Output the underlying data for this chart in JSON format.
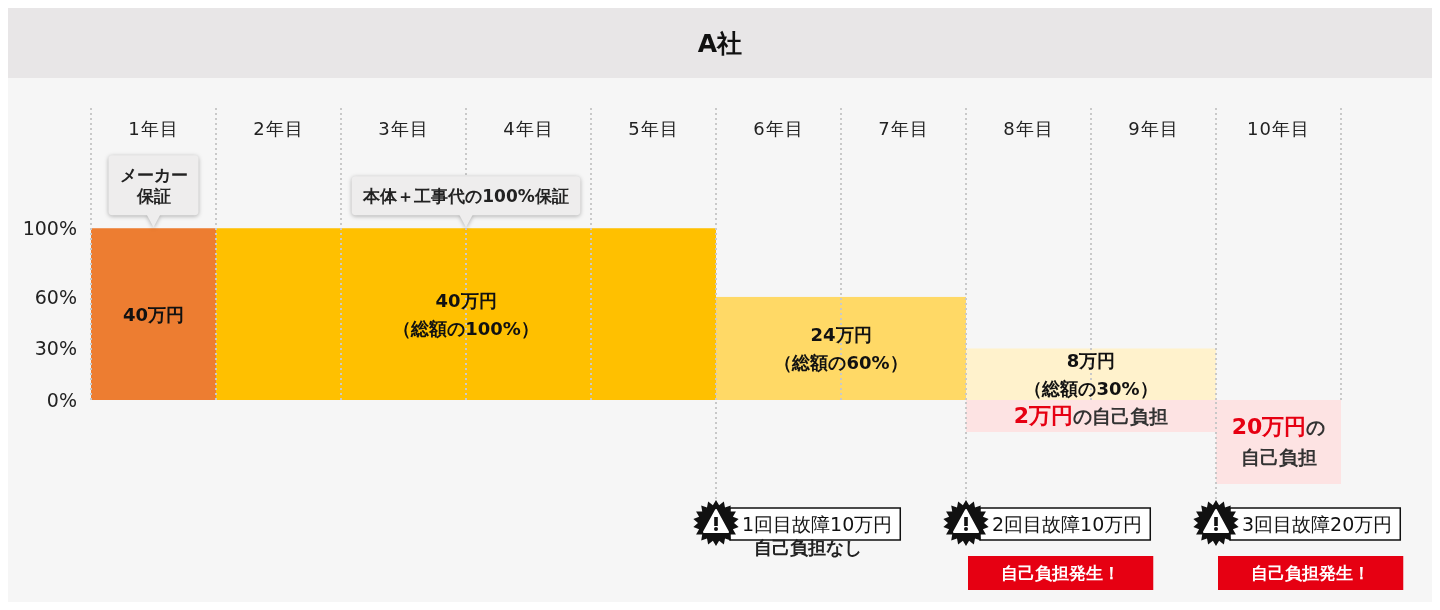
{
  "chart_data": {
    "type": "bar",
    "title": "A社",
    "categories": [
      "1年目",
      "2年目",
      "3年目",
      "4年目",
      "5年目",
      "6年目",
      "7年目",
      "8年目",
      "9年目",
      "10年目"
    ],
    "values": [
      100,
      100,
      100,
      100,
      100,
      60,
      60,
      30,
      30,
      0
    ],
    "colors": [
      "#ed7d31",
      "#ffc000",
      "#ffc000",
      "#ffc000",
      "#ffc000",
      "#ffd966",
      "#ffd966",
      "#fff2cc",
      "#fff2cc",
      "#fde3e3"
    ],
    "ylim": [
      0,
      170
    ],
    "yticks": [
      {
        "value": 0,
        "label": "0%"
      },
      {
        "value": 30,
        "label": "30%"
      },
      {
        "value": 60,
        "label": "60%"
      },
      {
        "value": 100,
        "label": "100%"
      }
    ],
    "grid": "x",
    "annotations": [
      "メーカー保証",
      "本体＋工事代の100%保証",
      "40万円",
      "40万円（総額の100%）",
      "24万円（総額の60%）",
      "8万円（総額の30%）",
      "2万円の自己負担",
      "20万円の自己負担",
      "1回目故障10万円",
      "自己負担なし",
      "2回目故障10万円",
      "自己負担発生！",
      "3回目故障20万円",
      "自己負担発生！"
    ]
  }
}
